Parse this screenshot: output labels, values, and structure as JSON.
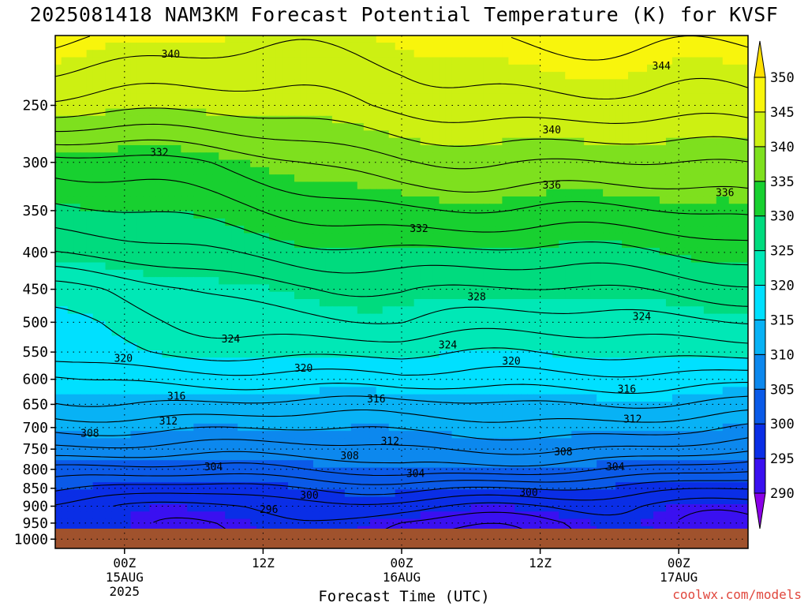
{
  "chart_data": {
    "type": "heatmap",
    "title": "2025081418 NAM3KM Forecast Potential Temperature (K) for KVSF",
    "xlabel": "Forecast Time (UTC)",
    "ylabel": "",
    "y_axis": {
      "scale": "log",
      "ticks": [
        250,
        300,
        350,
        400,
        450,
        500,
        550,
        600,
        650,
        700,
        750,
        800,
        850,
        900,
        950,
        1000
      ],
      "range": [
        200,
        1030
      ],
      "inverted": true
    },
    "x_axis": {
      "ticks": [
        {
          "hours": 6,
          "label": "00Z",
          "sub": "15AUG",
          "year": "2025"
        },
        {
          "hours": 18,
          "label": "12Z",
          "sub": "",
          "year": ""
        },
        {
          "hours": 30,
          "label": "00Z",
          "sub": "16AUG",
          "year": ""
        },
        {
          "hours": 42,
          "label": "12Z",
          "sub": "",
          "year": ""
        },
        {
          "hours": 54,
          "label": "00Z",
          "sub": "17AUG",
          "year": ""
        }
      ],
      "range": [
        0,
        60
      ]
    },
    "grid": true,
    "colorbar": {
      "levels": [
        290,
        295,
        300,
        305,
        310,
        315,
        320,
        325,
        330,
        335,
        340,
        345,
        350
      ],
      "colors": [
        "#8a00e8",
        "#3a10f0",
        "#0a2ee6",
        "#0a5ae8",
        "#0c88ee",
        "#08b2f5",
        "#00e0ff",
        "#00e8b6",
        "#00db7e",
        "#18d030",
        "#7ee01e",
        "#cdf012",
        "#f8f50c",
        "#ffe000"
      ],
      "placement": "right"
    },
    "contour_labels": [
      {
        "value": "340",
        "t": 10.0,
        "p": 212
      },
      {
        "value": "344",
        "t": 52.5,
        "p": 220
      },
      {
        "value": "340",
        "t": 43.0,
        "p": 270
      },
      {
        "value": "332",
        "t": 9.0,
        "p": 290
      },
      {
        "value": "336",
        "t": 43.0,
        "p": 322
      },
      {
        "value": "336",
        "t": 58.0,
        "p": 330
      },
      {
        "value": "332",
        "t": 31.5,
        "p": 370
      },
      {
        "value": "328",
        "t": 36.5,
        "p": 460
      },
      {
        "value": "324",
        "t": 50.8,
        "p": 490
      },
      {
        "value": "324",
        "t": 15.2,
        "p": 527
      },
      {
        "value": "324",
        "t": 34.0,
        "p": 537
      },
      {
        "value": "320",
        "t": 5.9,
        "p": 560
      },
      {
        "value": "320",
        "t": 21.5,
        "p": 578
      },
      {
        "value": "320",
        "t": 39.5,
        "p": 565
      },
      {
        "value": "316",
        "t": 10.5,
        "p": 632
      },
      {
        "value": "316",
        "t": 27.8,
        "p": 638
      },
      {
        "value": "316",
        "t": 49.5,
        "p": 618
      },
      {
        "value": "312",
        "t": 9.8,
        "p": 685
      },
      {
        "value": "312",
        "t": 29.0,
        "p": 730
      },
      {
        "value": "312",
        "t": 50.0,
        "p": 680
      },
      {
        "value": "308",
        "t": 3.0,
        "p": 712
      },
      {
        "value": "308",
        "t": 25.5,
        "p": 765
      },
      {
        "value": "308",
        "t": 44.0,
        "p": 755
      },
      {
        "value": "304",
        "t": 13.7,
        "p": 792
      },
      {
        "value": "304",
        "t": 31.2,
        "p": 810
      },
      {
        "value": "304",
        "t": 48.5,
        "p": 792
      },
      {
        "value": "300",
        "t": 22.0,
        "p": 868
      },
      {
        "value": "300",
        "t": 41.0,
        "p": 860
      },
      {
        "value": "296",
        "t": 18.5,
        "p": 908
      }
    ],
    "surface_pressure": 980,
    "model_profile": {
      "pressure_levels": [
        200,
        250,
        300,
        350,
        400,
        450,
        500,
        550,
        600,
        650,
        700,
        750,
        800,
        850,
        900,
        950,
        1000
      ],
      "theta_t0": [
        346,
        341,
        333,
        330,
        327,
        322,
        320,
        319,
        315,
        313,
        310,
        307,
        303,
        300,
        297,
        297,
        297
      ],
      "theta_t30": [
        345,
        342,
        337,
        333,
        329,
        326,
        324,
        321,
        318,
        314,
        311,
        308,
        305,
        300,
        296,
        293,
        292
      ],
      "theta_t60": [
        347,
        344,
        339,
        335,
        331,
        327,
        323,
        320,
        316,
        313,
        310,
        307,
        303,
        299,
        296,
        295,
        295
      ]
    }
  },
  "credit": "coolwx.com/models"
}
